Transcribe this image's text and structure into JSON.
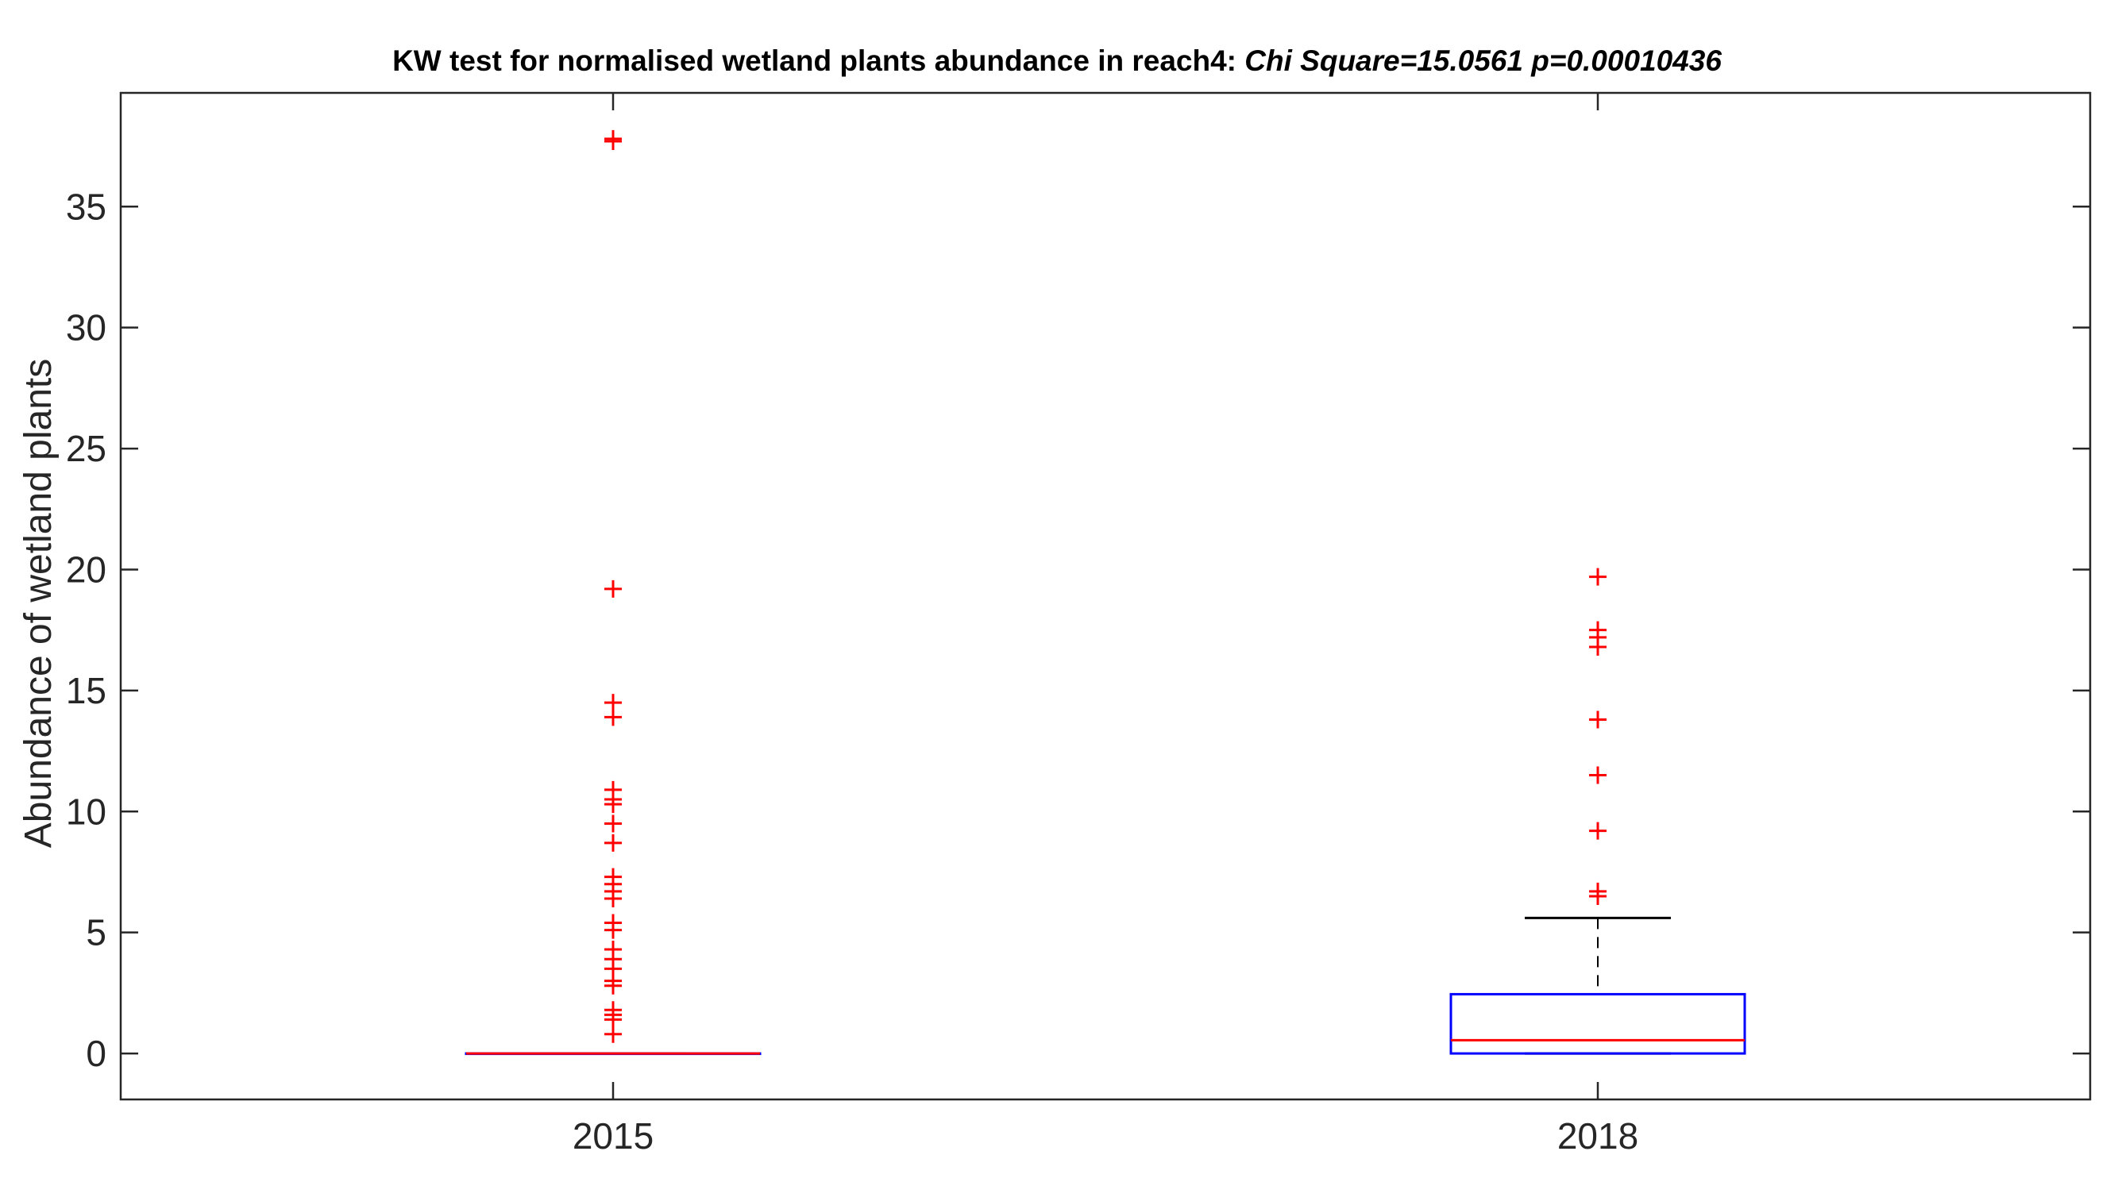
{
  "chart_data": {
    "type": "box",
    "title": "KW test for normalised wetland plants abundance in reach4:",
    "title_stats": "Chi Square=15.0561 p=0.00010436",
    "xlabel": "",
    "ylabel": "Abundance of  wetland plants",
    "ylim": [
      -1.9,
      39.7
    ],
    "yticks": [
      0,
      5,
      10,
      15,
      20,
      25,
      30,
      35
    ],
    "categories": [
      "2015",
      "2018"
    ],
    "grid": false,
    "legend": "none",
    "colors": {
      "box": "#0000ff",
      "median": "#ff0000",
      "whisker": "#000000",
      "outlier": "#ff0000",
      "axis": "#262626"
    },
    "boxes": [
      {
        "category": "2015",
        "q1": 0,
        "median": 0,
        "q3": 0,
        "whisker_low": 0,
        "whisker_high": 0,
        "outliers": [
          37.8,
          37.7,
          19.2,
          14.5,
          13.9,
          10.9,
          10.5,
          10.3,
          9.5,
          8.7,
          7.3,
          7.0,
          6.7,
          6.4,
          5.4,
          5.1,
          4.3,
          3.9,
          3.5,
          3.0,
          2.8,
          1.8,
          1.6,
          1.4,
          0.8
        ]
      },
      {
        "category": "2018",
        "q1": 0,
        "median": 0.55,
        "q3": 2.45,
        "whisker_low": 0,
        "whisker_high": 5.6,
        "outliers": [
          19.7,
          17.5,
          17.2,
          16.8,
          13.8,
          11.5,
          9.2,
          6.7,
          6.5
        ]
      }
    ]
  }
}
